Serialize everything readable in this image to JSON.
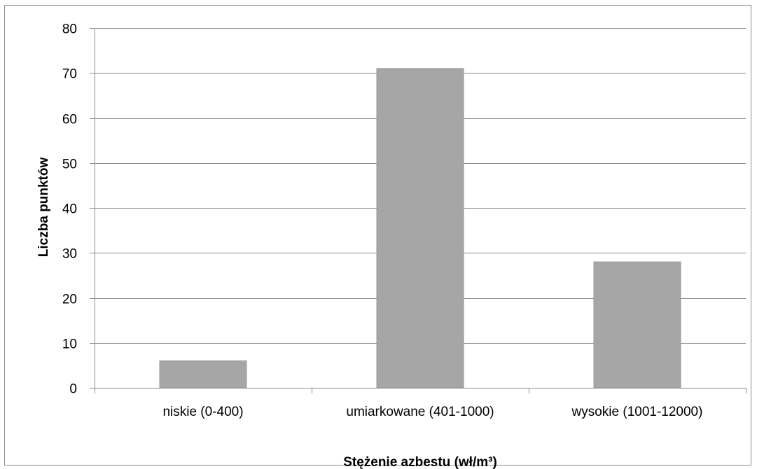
{
  "chart_data": {
    "type": "bar",
    "categories": [
      "niskie (0-400)",
      "umiarkowane (401-1000)",
      "wysokie (1001-12000)"
    ],
    "values": [
      6,
      71,
      28
    ],
    "title": "",
    "xlabel": "Stężenie azbestu (wł/m³)",
    "ylabel": "Liczba punktów",
    "ylim": [
      0,
      80
    ],
    "yticks": [
      0,
      10,
      20,
      30,
      40,
      50,
      60,
      70,
      80
    ],
    "grid": true,
    "legend": "none",
    "colors": {
      "bar": "#a6a6a6",
      "bar_border": "#9a9a9a",
      "grid": "#8c8c8c",
      "axis": "#8c8c8c",
      "frame": "#8c8c8c"
    }
  }
}
